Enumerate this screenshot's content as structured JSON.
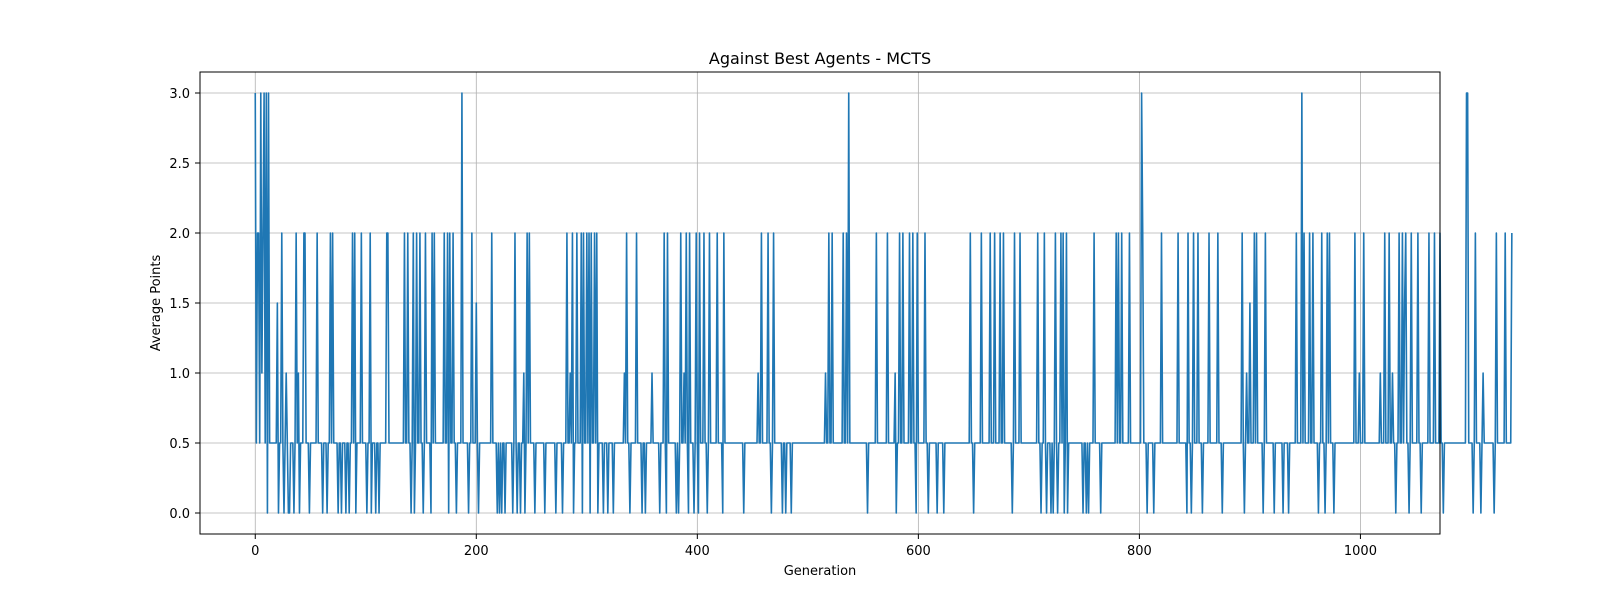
{
  "chart_data": {
    "type": "line",
    "title": "Against Best Agents - MCTS",
    "xlabel": "Generation",
    "ylabel": "Average Points",
    "xlim": [
      -50,
      1072
    ],
    "ylim": [
      -0.15,
      3.15
    ],
    "xticks": [
      0,
      200,
      400,
      600,
      800,
      1000
    ],
    "xtick_labels": [
      "0",
      "200",
      "400",
      "600",
      "800",
      "1000"
    ],
    "yticks": [
      0.0,
      0.5,
      1.0,
      1.5,
      2.0,
      2.5,
      3.0
    ],
    "ytick_labels": [
      "0.0",
      "0.5",
      "1.0",
      "1.5",
      "2.0",
      "2.5",
      "3.0"
    ],
    "grid": true,
    "line_color": "#1f77b4",
    "series": [
      {
        "x_start": 0,
        "x_step": 1,
        "values": [
          3,
          0.5,
          2,
          2,
          0.5,
          3,
          1,
          2,
          3,
          0.5,
          3,
          0,
          3,
          0.5,
          0.5,
          0.5,
          0.5,
          0.5,
          0.5,
          0.5,
          1.5,
          0,
          0.5,
          0.5,
          2,
          0.5,
          0,
          0.5,
          1,
          0.5,
          0,
          0,
          0.5,
          0.5,
          0.5,
          0,
          0.5,
          2,
          0.5,
          1,
          0,
          0.5,
          0.5,
          0.5,
          2,
          2,
          0.5,
          0.5,
          0.5,
          0,
          0.5,
          0.5,
          0.5,
          0.5,
          0.5,
          0.5,
          2,
          0.5,
          0.5,
          0.5,
          0.5,
          0,
          0.5,
          0.5,
          0.5,
          0,
          0.5,
          0.5,
          2,
          0.5,
          2,
          0.5,
          0.5,
          0.5,
          0.5,
          0,
          0.5,
          0.5,
          0,
          0.5,
          0.5,
          0.5,
          0,
          0.5,
          0.5,
          0,
          0.5,
          0.5,
          2,
          0.5,
          2,
          0,
          0.5,
          0.5,
          0.5,
          0.5,
          2,
          0.5,
          0.5,
          0.5,
          0.5,
          0,
          0.5,
          0.5,
          2,
          0,
          0.5,
          0.5,
          0.5,
          0,
          0.5,
          0.5,
          0,
          0.5,
          0.5,
          0.5,
          0.5,
          0.5,
          0.5,
          2,
          2,
          0.5,
          0.5,
          0.5,
          0.5,
          0.5,
          0.5,
          0.5,
          0.5,
          0.5,
          0.5,
          0.5,
          0.5,
          0.5,
          0.5,
          2,
          0.5,
          0.5,
          2,
          0.5,
          0.5,
          0,
          0.5,
          2,
          0,
          0.5,
          2,
          0.5,
          0.5,
          2,
          0.5,
          0.5,
          0,
          0.5,
          2,
          0.5,
          0.5,
          0.5,
          0.5,
          0,
          2,
          0.5,
          2,
          0.5,
          0.5,
          0.5,
          0.5,
          0.5,
          0.5,
          0.5,
          0.5,
          2,
          0.5,
          0.5,
          2,
          0,
          2,
          0.5,
          0.5,
          2,
          0.5,
          0.5,
          0,
          0.5,
          0.5,
          0.5,
          0.5,
          3,
          0.5,
          0.5,
          0.5,
          0.5,
          0.5,
          0,
          0.5,
          0.5,
          2,
          0.5,
          0.5,
          0.5,
          1.5,
          0.5,
          0,
          0.5,
          0.5,
          0.5,
          0.5,
          0.5,
          0.5,
          0.5,
          0.5,
          0.5,
          0.5,
          0.5,
          2,
          0.5,
          0.5,
          0.5,
          0.5,
          0,
          0.5,
          0,
          0.5,
          0,
          0.5,
          0.5,
          0,
          0.5,
          0.5,
          0.5,
          0.5,
          0.5,
          0.5,
          0,
          0.5,
          2,
          0.5,
          0,
          0.5,
          0.5,
          0,
          0.5,
          0.5,
          1,
          0,
          0.5,
          2,
          0.5,
          2,
          0.5,
          0.5,
          0.5,
          0.5,
          0,
          0.5,
          0.5,
          0.5,
          0.5,
          0.5,
          0.5,
          0.5,
          0.5,
          0,
          0.5,
          0.5,
          0.5,
          0.5,
          0.5,
          0.5,
          0.5,
          0.5,
          0.5,
          0,
          0.5,
          0.5,
          0.5,
          0.5,
          0.5,
          0,
          0.5,
          0.5,
          0.5,
          2,
          0.5,
          0.5,
          1,
          0.5,
          2,
          0,
          0.5,
          0.5,
          2,
          0.5,
          0.5,
          0.5,
          2,
          0,
          2,
          0.5,
          0.5,
          2,
          0.5,
          2,
          0,
          2,
          0.5,
          0.5,
          2,
          0.5,
          2,
          0,
          0.5,
          0.5,
          0.5,
          0.5,
          0,
          0.5,
          0.5,
          0.5,
          0,
          0.5,
          0.5,
          0.5,
          0.5,
          0,
          0.5,
          0.5,
          0.5,
          0.5,
          0.5,
          0.5,
          0.5,
          0.5,
          0.5,
          1,
          0.5,
          2,
          0.5,
          0.5,
          0,
          0.5,
          0.5,
          0.5,
          0.5,
          0.5,
          2,
          0.5,
          0.5,
          0.5,
          0.5,
          0,
          0.5,
          0.5,
          0,
          0.5,
          0.5,
          0.5,
          0.5,
          0.5,
          1,
          0.5,
          0.5,
          0.5,
          0.5,
          0.5,
          0.5,
          0,
          0.5,
          0.5,
          0.5,
          2,
          0.5,
          0,
          2,
          0.5,
          0.5,
          0.5,
          0.5,
          0.5,
          0.5,
          0.5,
          0,
          0.5,
          0,
          0.5,
          2,
          0.5,
          0.5,
          1,
          0.5,
          2,
          0.5,
          0,
          2,
          0.5,
          0.5,
          0.5,
          0,
          0.5,
          2,
          0.5,
          0,
          2,
          0.5,
          0.5,
          0.5,
          2,
          0.5,
          0.5,
          0,
          0.5,
          2,
          0.5,
          0.5,
          0.5,
          0.5,
          0.5,
          0.5,
          2,
          0.5,
          0.5,
          0.5,
          0.5,
          0,
          2,
          0.5,
          0.5,
          0.5,
          0.5,
          0.5,
          0.5,
          0.5,
          0.5,
          0.5,
          0.5,
          0.5,
          0.5,
          0.5,
          0.5,
          0.5,
          0.5,
          0.5,
          0,
          0.5,
          0.5,
          0.5,
          0.5,
          0.5,
          0.5,
          0.5,
          0.5,
          0.5,
          0.5,
          0.5,
          0.5,
          1,
          0.5,
          0.5,
          2,
          0.5,
          0.5,
          0.5,
          0.5,
          0.5,
          2,
          0.5,
          0.5,
          0,
          0.5,
          2,
          0.5,
          0.5,
          0.5,
          0.5,
          0.5,
          0.5,
          0.5,
          0,
          0.5,
          0.5,
          0,
          0.5,
          0.5,
          0.5,
          0.5,
          0,
          0.5,
          0.5,
          0.5,
          0.5,
          0.5,
          0.5,
          0.5,
          0.5,
          0.5,
          0.5,
          0.5,
          0.5,
          0.5,
          0.5,
          0.5,
          0.5,
          0.5,
          0.5,
          0.5,
          0.5,
          0.5,
          0.5,
          0.5,
          0.5,
          0.5,
          0.5,
          0.5,
          0.5,
          0.5,
          0.5,
          1,
          0.5,
          0.5,
          2,
          0.5,
          0.5,
          2,
          0.5,
          0.5,
          0.5,
          0.5,
          0.5,
          0.5,
          0.5,
          0.5,
          0.5,
          2,
          0.5,
          0.5,
          2,
          0.5,
          3,
          0.5,
          0.5,
          0.5,
          0.5,
          0.5,
          0.5,
          0.5,
          0.5,
          0.5,
          0.5,
          0.5,
          0.5,
          0.5,
          0.5,
          0.5,
          0.5,
          0,
          0.5,
          0.5,
          0.5,
          0.5,
          0.5,
          0.5,
          0.5,
          2,
          0.5,
          0.5,
          0.5,
          0.5,
          0.5,
          0.5,
          0.5,
          0.5,
          0.5,
          2,
          0.5,
          0.5,
          0.5,
          0.5,
          0.5,
          0.5,
          1,
          0,
          0.5,
          0.5,
          2,
          0.5,
          0.5,
          2,
          0.5,
          0.5,
          0.5,
          0.5,
          0.5,
          2,
          0.5,
          0.5,
          2,
          0.5,
          0.5,
          0,
          2,
          0.5,
          0.5,
          0.5,
          0.5,
          0.5,
          0.5,
          2,
          0.5,
          0.5,
          0,
          0.5,
          0.5,
          0.5,
          0.5,
          0.5,
          0.5,
          0.5,
          0,
          0.5,
          0.5,
          0.5,
          0.5,
          0.5,
          0,
          0.5,
          0.5,
          0.5,
          0.5,
          0.5,
          0.5,
          0.5,
          0.5,
          0.5,
          0.5,
          0.5,
          0.5,
          0.5,
          0.5,
          0.5,
          0.5,
          0.5,
          0.5,
          0.5,
          0.5,
          0.5,
          0.5,
          0.5,
          2,
          0.5,
          0.5,
          0,
          0.5,
          0.5,
          0.5,
          0.5,
          0.5,
          0.5,
          2,
          0.5,
          0.5,
          0.5,
          0.5,
          0.5,
          0.5,
          0.5,
          2,
          0.5,
          0.5,
          0.5,
          2,
          0.5,
          0.5,
          0.5,
          0.5,
          2,
          0.5,
          0.5,
          2,
          0.5,
          0.5,
          0.5,
          0.5,
          0.5,
          0.5,
          0.5,
          0,
          0.5,
          2,
          0.5,
          0.5,
          0.5,
          0.5,
          2,
          0.5,
          0.5,
          0.5,
          0.5,
          0.5,
          0.5,
          0.5,
          0.5,
          0.5,
          0.5,
          0.5,
          0.5,
          0.5,
          0.5,
          0.5,
          2,
          0.5,
          0.5,
          0,
          0.5,
          0.5,
          2,
          0.5,
          0,
          0.5,
          0.5,
          0.5,
          0,
          0.5,
          0,
          0.5,
          2,
          0.5,
          0,
          0.5,
          0.5,
          2,
          0.5,
          2,
          0,
          0.5,
          2,
          0,
          0.5,
          0.5,
          0.5,
          0.5,
          0.5,
          0.5,
          0.5,
          0.5,
          0.5,
          0.5,
          0.5,
          0.5,
          0.5,
          0,
          0.5,
          0.5,
          0,
          0.5,
          0,
          0.5,
          0.5,
          0.5,
          0.5,
          2,
          0.5,
          0.5,
          0.5,
          0.5,
          0.5,
          0,
          0.5,
          0.5,
          0.5,
          0.5,
          0.5,
          0.5,
          0.5,
          0.5,
          0.5,
          0.5,
          0.5,
          0.5,
          0.5,
          2,
          0.5,
          2,
          0.5,
          0.5,
          2,
          0.5,
          0.5,
          0.5,
          0.5,
          0.5,
          0.5,
          2,
          0.5,
          0.5,
          0.5,
          0.5,
          0.5,
          0.5,
          0.5,
          0.5,
          0.5,
          0.5,
          3,
          2,
          0.5,
          0.5,
          0.5,
          0,
          0.5,
          0.5,
          0.5,
          0.5,
          0.5,
          0,
          0.5,
          0.5,
          0.5,
          0.5,
          0.5,
          0.5,
          2,
          0.5,
          0.5,
          0.5,
          0.5,
          0.5,
          0.5,
          0.5,
          0.5,
          0.5,
          0.5,
          0.5,
          0.5,
          0.5,
          0.5,
          2,
          0.5,
          0.5,
          0.5,
          0.5,
          0.5,
          0.5,
          0.5,
          0,
          2,
          0.5,
          0.5,
          0,
          0.5,
          2,
          0.5,
          0.5,
          0.5,
          2,
          0.5,
          0.5,
          0.5,
          0,
          0.5,
          0.5,
          0.5,
          0.5,
          0.5,
          2,
          0.5,
          0.5,
          0.5,
          0.5,
          0.5,
          0.5,
          0.5,
          2,
          0.5,
          0.5,
          0.5,
          0,
          0.5,
          0.5,
          0.5,
          0.5,
          0.5,
          0.5,
          0.5,
          0.5,
          0.5,
          0.5,
          0.5,
          0.5,
          0.5,
          0.5,
          0.5,
          0.5,
          0.5,
          2,
          0.5,
          0,
          0.5,
          1,
          0.5,
          0.5,
          1.5,
          0.5,
          0.5,
          0.5,
          2,
          0.5,
          2,
          0.5,
          0.5,
          0.5,
          0.5,
          0.5,
          0,
          0.5,
          2,
          0.5,
          0.5,
          0.5,
          0.5,
          0.5,
          0.5,
          0.5,
          0,
          0.5,
          0.5,
          0.5,
          0.5,
          0.5,
          0.5,
          0.5,
          0,
          0.5,
          0.5,
          0.5,
          0.5,
          0,
          0.5,
          0.5,
          0.5,
          0.5,
          0.5,
          0.5,
          2,
          0.5,
          0.5,
          0.5,
          0.5,
          3,
          0.5,
          2,
          0.5,
          0.5,
          0.5,
          0.5,
          2,
          0.5,
          0.5,
          2,
          0.5,
          0.5,
          0.5,
          0.5,
          0,
          0.5,
          0.5,
          2,
          0.5,
          0.5,
          0,
          0.5,
          2,
          0.5,
          2,
          0.5,
          0.5,
          0.5,
          0,
          0.5,
          0.5,
          0.5,
          0.5,
          0.5,
          0.5,
          0.5,
          0.5,
          0.5,
          0.5,
          0.5,
          0.5,
          0.5,
          0.5,
          0.5,
          0.5,
          0.5,
          0.5,
          2,
          0.5,
          0.5,
          0.5,
          1,
          0.5,
          0.5,
          0.5,
          2,
          0.5,
          0.5,
          0.5,
          0.5,
          0.5,
          0.5,
          0.5,
          0.5,
          0.5,
          0.5,
          0.5,
          0.5,
          0.5,
          0.5,
          1,
          0.5,
          0.5,
          0.5,
          2,
          0.5,
          0.5,
          0.5,
          2,
          0.5,
          0.5,
          1,
          0.5,
          0.5,
          0,
          0.5,
          0.5,
          2,
          0.5,
          0.5,
          2,
          0.5,
          1.5,
          2,
          0.5,
          0.5,
          0,
          0.5,
          2,
          0.5,
          0.5,
          0.5,
          0.5,
          0.5,
          2,
          0.5,
          0.5,
          0,
          0.5,
          0.5,
          0.5,
          0.5,
          0.5,
          0.5,
          2,
          0.5,
          0.5,
          0.5,
          0.5,
          2,
          0.5,
          0.5,
          0.5,
          0.5,
          2,
          0.5,
          0.5,
          0,
          0.5,
          0.5,
          0.5,
          0.5,
          0.5,
          0.5,
          0.5,
          0.5,
          0.5,
          0.5,
          0.5,
          0.5,
          0.5,
          0.5,
          0.5,
          0.5,
          0.5,
          0.5,
          0.5,
          0.5,
          3,
          3,
          0.5,
          0.5,
          0.5,
          0.5,
          0,
          0.5,
          2,
          0.5,
          0.5,
          0.5,
          0.5,
          0,
          0.5,
          1,
          0.5,
          0.5,
          0.5,
          0.5,
          0.5,
          0.5,
          0.5,
          0.5,
          0.5,
          0,
          0.5,
          2,
          0.5,
          0.5,
          0.5,
          0.5,
          0.5,
          0.5,
          0.5,
          2,
          0.5,
          0.5,
          0.5,
          0.5,
          0.5,
          2
        ]
      }
    ]
  }
}
